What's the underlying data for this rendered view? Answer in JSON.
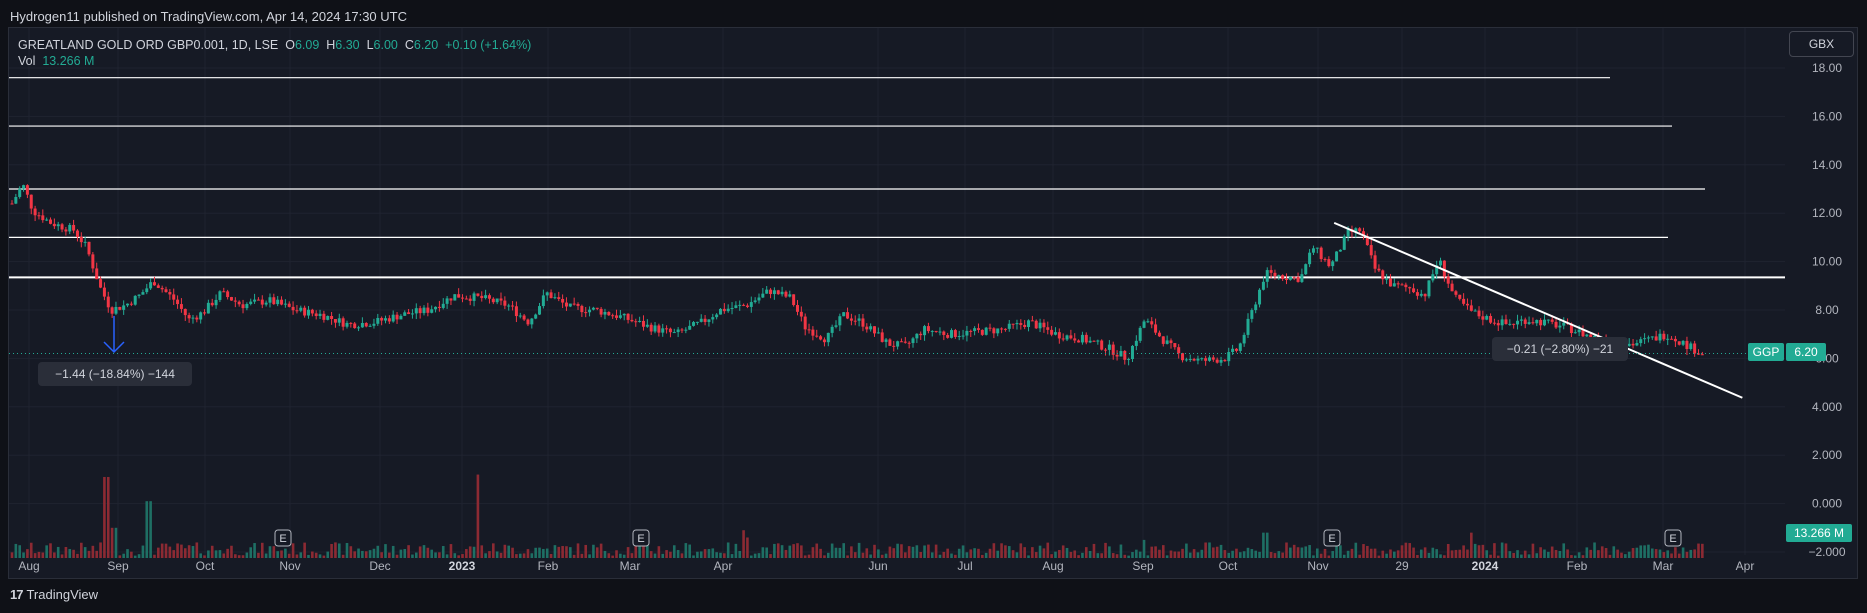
{
  "header": {
    "published_text": "Hydrogen11 published on TradingView.com, Apr 14, 2024 17:30 UTC"
  },
  "legend": {
    "symbol": "GREATLAND GOLD ORD GBP0.001, 1D, LSE",
    "open_label": "O",
    "open": "6.09",
    "high_label": "H",
    "high": "6.30",
    "low_label": "L",
    "low": "6.00",
    "close_label": "C",
    "close": "6.20",
    "change": "+0.10 (+1.64%)",
    "vol_label": "Vol",
    "vol": "13.266 M"
  },
  "currency_button": "GBX",
  "footer": {
    "brand": "TradingView",
    "logo": "17"
  },
  "colors": {
    "up": "#22ab94",
    "down": "#f23645",
    "background": "#161a25",
    "line": "#ffffff",
    "accent": "#2962ff"
  },
  "annotations": {
    "left_measure": "−1.44 (−18.84%) −144",
    "right_measure": "−0.21 (−2.80%) −21"
  },
  "price_tag": {
    "symbol": "GGP",
    "value": "6.20"
  },
  "volume_tag": "13.266 M",
  "earnings_marker": "E",
  "chart_data": {
    "type": "candlestick",
    "title": "GREATLAND GOLD ORD GBP0.001, 1D, LSE",
    "y_ticks": [
      "18.00",
      "16.00",
      "14.00",
      "12.00",
      "10.00",
      "8.00",
      "6.00",
      "4.000",
      "2.000",
      "0.000",
      "−2.000"
    ],
    "ylim": [
      -2.5,
      19
    ],
    "x_ticks": [
      {
        "label": "Aug",
        "bold": false
      },
      {
        "label": "Sep",
        "bold": false
      },
      {
        "label": "Oct",
        "bold": false
      },
      {
        "label": "Nov",
        "bold": false
      },
      {
        "label": "Dec",
        "bold": false
      },
      {
        "label": "2023",
        "bold": true
      },
      {
        "label": "Feb",
        "bold": false
      },
      {
        "label": "Mar",
        "bold": false
      },
      {
        "label": "Apr",
        "bold": false
      },
      {
        "label": "Jun",
        "bold": false
      },
      {
        "label": "Jul",
        "bold": false
      },
      {
        "label": "Aug",
        "bold": false
      },
      {
        "label": "Sep",
        "bold": false
      },
      {
        "label": "Oct",
        "bold": false
      },
      {
        "label": "Nov",
        "bold": false
      },
      {
        "label": "29",
        "bold": false
      },
      {
        "label": "2024",
        "bold": true
      },
      {
        "label": "Feb",
        "bold": false
      },
      {
        "label": "Mar",
        "bold": false
      },
      {
        "label": "Apr",
        "bold": false
      }
    ],
    "horizontal_levels": [
      17.6,
      15.6,
      13.0,
      11.0,
      9.35
    ],
    "trendline": {
      "start": [
        0.747,
        11.6
      ],
      "end": [
        0.955,
        5.2
      ]
    },
    "price_path": [
      [
        0.0,
        12.4
      ],
      [
        0.006,
        13.2
      ],
      [
        0.012,
        12.1
      ],
      [
        0.022,
        11.6
      ],
      [
        0.035,
        11.3
      ],
      [
        0.042,
        10.6
      ],
      [
        0.05,
        8.9
      ],
      [
        0.056,
        8.0
      ],
      [
        0.064,
        8.2
      ],
      [
        0.072,
        8.6
      ],
      [
        0.08,
        9.2
      ],
      [
        0.092,
        8.4
      ],
      [
        0.1,
        7.6
      ],
      [
        0.108,
        7.9
      ],
      [
        0.118,
        8.7
      ],
      [
        0.13,
        8.2
      ],
      [
        0.145,
        8.4
      ],
      [
        0.16,
        8.0
      ],
      [
        0.175,
        7.8
      ],
      [
        0.19,
        7.4
      ],
      [
        0.205,
        7.5
      ],
      [
        0.22,
        7.8
      ],
      [
        0.235,
        8.0
      ],
      [
        0.25,
        8.6
      ],
      [
        0.265,
        8.5
      ],
      [
        0.28,
        8.2
      ],
      [
        0.292,
        7.5
      ],
      [
        0.302,
        8.7
      ],
      [
        0.315,
        8.1
      ],
      [
        0.33,
        8.0
      ],
      [
        0.345,
        7.7
      ],
      [
        0.36,
        7.3
      ],
      [
        0.375,
        7.0
      ],
      [
        0.39,
        7.5
      ],
      [
        0.4,
        8.0
      ],
      [
        0.415,
        8.2
      ],
      [
        0.428,
        8.8
      ],
      [
        0.44,
        8.5
      ],
      [
        0.448,
        7.3
      ],
      [
        0.46,
        6.8
      ],
      [
        0.47,
        7.8
      ],
      [
        0.48,
        7.5
      ],
      [
        0.495,
        6.6
      ],
      [
        0.505,
        6.5
      ],
      [
        0.515,
        7.2
      ],
      [
        0.53,
        7.0
      ],
      [
        0.545,
        7.1
      ],
      [
        0.56,
        7.2
      ],
      [
        0.575,
        7.5
      ],
      [
        0.59,
        7.0
      ],
      [
        0.605,
        6.8
      ],
      [
        0.62,
        6.4
      ],
      [
        0.63,
        6.0
      ],
      [
        0.64,
        7.6
      ],
      [
        0.65,
        6.8
      ],
      [
        0.66,
        6.1
      ],
      [
        0.672,
        5.9
      ],
      [
        0.685,
        6.0
      ],
      [
        0.693,
        6.4
      ],
      [
        0.7,
        7.8
      ],
      [
        0.708,
        9.5
      ],
      [
        0.718,
        9.4
      ],
      [
        0.728,
        9.3
      ],
      [
        0.735,
        10.6
      ],
      [
        0.745,
        9.8
      ],
      [
        0.755,
        11.2
      ],
      [
        0.762,
        11.3
      ],
      [
        0.77,
        9.7
      ],
      [
        0.78,
        9.0
      ],
      [
        0.79,
        8.9
      ],
      [
        0.798,
        8.6
      ],
      [
        0.806,
        10.1
      ],
      [
        0.815,
        8.5
      ],
      [
        0.825,
        7.9
      ],
      [
        0.835,
        7.6
      ],
      [
        0.845,
        7.4
      ],
      [
        0.855,
        7.6
      ],
      [
        0.865,
        7.5
      ],
      [
        0.878,
        7.3
      ],
      [
        0.888,
        7.0
      ],
      [
        0.898,
        6.8
      ],
      [
        0.906,
        6.6
      ],
      [
        0.916,
        6.6
      ],
      [
        0.926,
        6.8
      ],
      [
        0.935,
        7.0
      ],
      [
        0.945,
        6.6
      ],
      [
        0.955,
        6.2
      ]
    ],
    "volume_spikes": [
      [
        0.053,
        3.4
      ],
      [
        0.058,
        1.3
      ],
      [
        0.077,
        2.4
      ],
      [
        0.263,
        3.5
      ],
      [
        0.414,
        1.2
      ],
      [
        0.708,
        1.1
      ],
      [
        0.825,
        1.1
      ],
      [
        0.64,
        0.8
      ],
      [
        0.415,
        0.9
      ]
    ]
  }
}
